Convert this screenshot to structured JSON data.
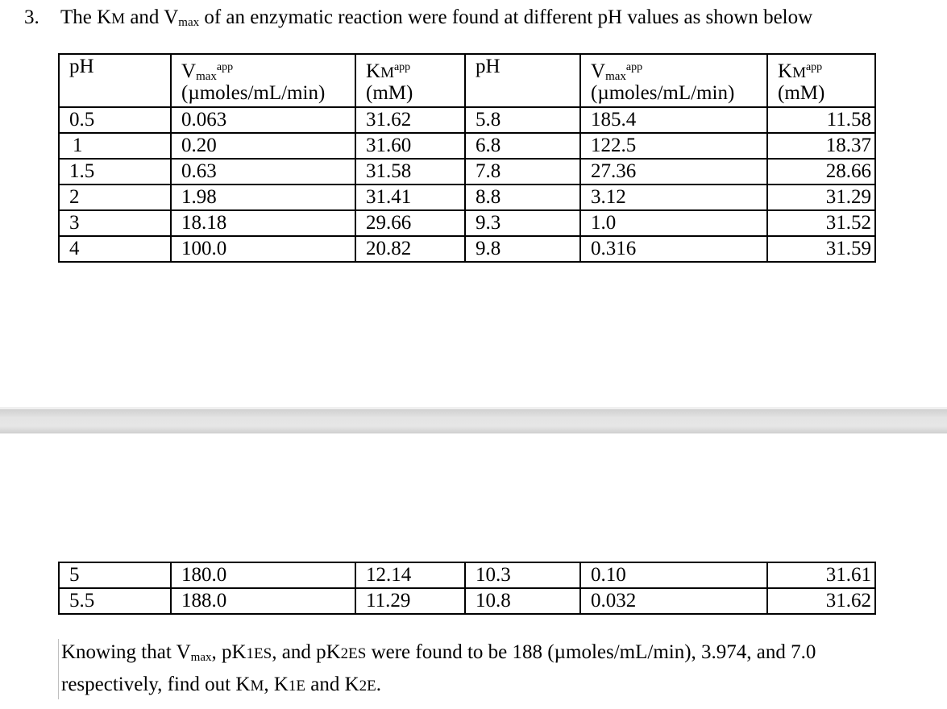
{
  "question": {
    "number": "3.",
    "text_part1": "The K",
    "km_sub": "M",
    "text_part2": " and V",
    "vmax_sub": "max",
    "text_part3": " of an enzymatic reaction were found at different pH values as shown below"
  },
  "headers": {
    "ph": "pH",
    "v_letter": "V",
    "v_sub": "max",
    "sup": "app",
    "v_units": "(µmoles/mL/min)",
    "k_letter": "K",
    "k_sub": "M",
    "k_units": "(mM)"
  },
  "table_top": [
    [
      "0.5",
      "0.063",
      "31.62",
      "5.8",
      "185.4",
      "11.58"
    ],
    [
      "1",
      "0.20",
      "31.60",
      "6.8",
      "122.5",
      "18.37"
    ],
    [
      "1.5",
      "0.63",
      "31.58",
      "7.8",
      "27.36",
      "28.66"
    ],
    [
      "2",
      "1.98",
      "31.41",
      "8.8",
      "3.12",
      "31.29"
    ],
    [
      "3",
      "18.18",
      "29.66",
      "9.3",
      "1.0",
      "31.52"
    ],
    [
      "4",
      "100.0",
      "20.82",
      "9.8",
      "0.316",
      "31.59"
    ]
  ],
  "table_bottom": [
    [
      "5",
      "180.0",
      "12.14",
      "10.3",
      "0.10",
      "31.61"
    ],
    [
      "5.5",
      "188.0",
      "11.29",
      "10.8",
      "0.032",
      "31.62"
    ]
  ],
  "paragraph": {
    "t1": "Knowing that V",
    "s1": "max",
    "t2": ", pK",
    "s2": "1ES",
    "t3": ", and pK",
    "s3": "2ES",
    "t4": " were found to be 188 (µmoles/mL/min), 3.974, and 7.0",
    "t5": "respectively, find out K",
    "s5": "M",
    "t6": ", K",
    "s6": "1E",
    "t7": " and K",
    "s7": "2E",
    "t8": "."
  }
}
